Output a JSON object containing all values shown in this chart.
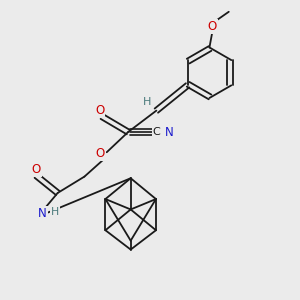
{
  "bg_color": "#ebebeb",
  "bond_color": "#1a1a1a",
  "O_color": "#cc0000",
  "N_color": "#1a1acc",
  "H_color": "#4a7a7c",
  "C_color": "#1a1a1a",
  "figsize": [
    3.0,
    3.0
  ],
  "dpi": 100,
  "xlim": [
    0,
    10
  ],
  "ylim": [
    0,
    10
  ]
}
